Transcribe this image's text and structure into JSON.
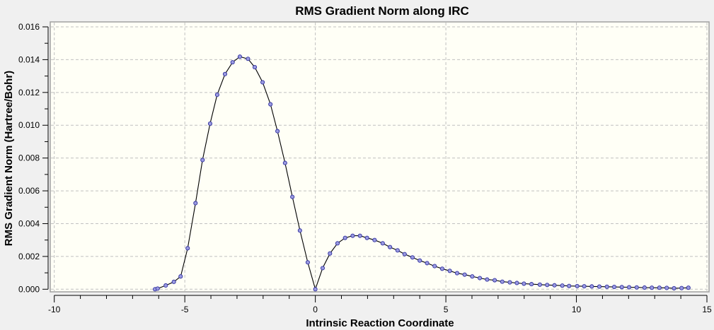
{
  "chart_data": {
    "type": "line",
    "title": "RMS Gradient Norm along IRC",
    "xlabel": "Intrinsic Reaction Coordinate",
    "ylabel": "RMS Gradient Norm (Hartree/Bohr)",
    "xlim": [
      -10,
      15
    ],
    "ylim": [
      0,
      0.016
    ],
    "xticks": [
      "-10",
      "-5",
      "0",
      "5",
      "10",
      "15"
    ],
    "xtick_values": [
      -10,
      -5,
      0,
      5,
      10,
      15
    ],
    "yticks": [
      "0.000",
      "0.002",
      "0.004",
      "0.006",
      "0.008",
      "0.010",
      "0.012",
      "0.014",
      "0.016"
    ],
    "ytick_values": [
      0,
      0.002,
      0.004,
      0.006,
      0.008,
      0.01,
      0.012,
      0.014,
      0.016
    ],
    "grid": true,
    "markers": true,
    "colors": {
      "line": "#000000",
      "marker_fill": "#9b9be0",
      "marker_stroke": "#3030a0",
      "plot_bg": "#fffff6",
      "grid": "#c0c0c0"
    },
    "series": [
      {
        "x": [
          -6.14,
          -6.04,
          -5.73,
          -5.42,
          -5.16,
          -4.89,
          -4.59,
          -4.32,
          -4.03,
          -3.76,
          -3.46,
          -3.17,
          -2.89,
          -2.58,
          -2.32,
          -2.02,
          -1.72,
          -1.45,
          -1.16,
          -0.88,
          -0.59,
          -0.29,
          0.0,
          0.28,
          0.56,
          0.85,
          1.14,
          1.43,
          1.71,
          1.98,
          2.27,
          2.58,
          2.86,
          3.15,
          3.42,
          3.72,
          4.0,
          4.28,
          4.57,
          4.86,
          5.15,
          5.43,
          5.72,
          6.01,
          6.3,
          6.58,
          6.87,
          7.16,
          7.45,
          7.72,
          7.99,
          8.28,
          8.6,
          8.88,
          9.16,
          9.46,
          9.72,
          10.03,
          10.3,
          10.59,
          10.88,
          11.17,
          11.45,
          11.74,
          12.02,
          12.31,
          12.61,
          12.89,
          13.18,
          13.46,
          13.74,
          14.03,
          14.29
        ],
        "y": [
          0.0,
          4e-05,
          0.00023,
          0.00045,
          0.00078,
          0.0025,
          0.00525,
          0.00788,
          0.0101,
          0.01186,
          0.01312,
          0.01384,
          0.01418,
          0.01405,
          0.01354,
          0.01262,
          0.01128,
          0.00964,
          0.0077,
          0.00563,
          0.00358,
          0.00164,
          0.0,
          0.00129,
          0.00218,
          0.0028,
          0.00313,
          0.00326,
          0.00326,
          0.00313,
          0.003,
          0.0028,
          0.00257,
          0.00237,
          0.00214,
          0.00194,
          0.00175,
          0.00159,
          0.00141,
          0.00125,
          0.00112,
          0.00098,
          0.00089,
          0.00078,
          0.00068,
          0.00059,
          0.00055,
          0.00046,
          0.00042,
          0.00038,
          0.00034,
          0.00031,
          0.00028,
          0.00026,
          0.00024,
          0.00022,
          0.0002,
          0.00019,
          0.00018,
          0.00017,
          0.00016,
          0.00015,
          0.00014,
          0.00013,
          0.00012,
          0.00011,
          0.0001,
          9e-05,
          9e-05,
          8e-05,
          6e-05,
          7e-05,
          9e-05
        ]
      }
    ]
  }
}
